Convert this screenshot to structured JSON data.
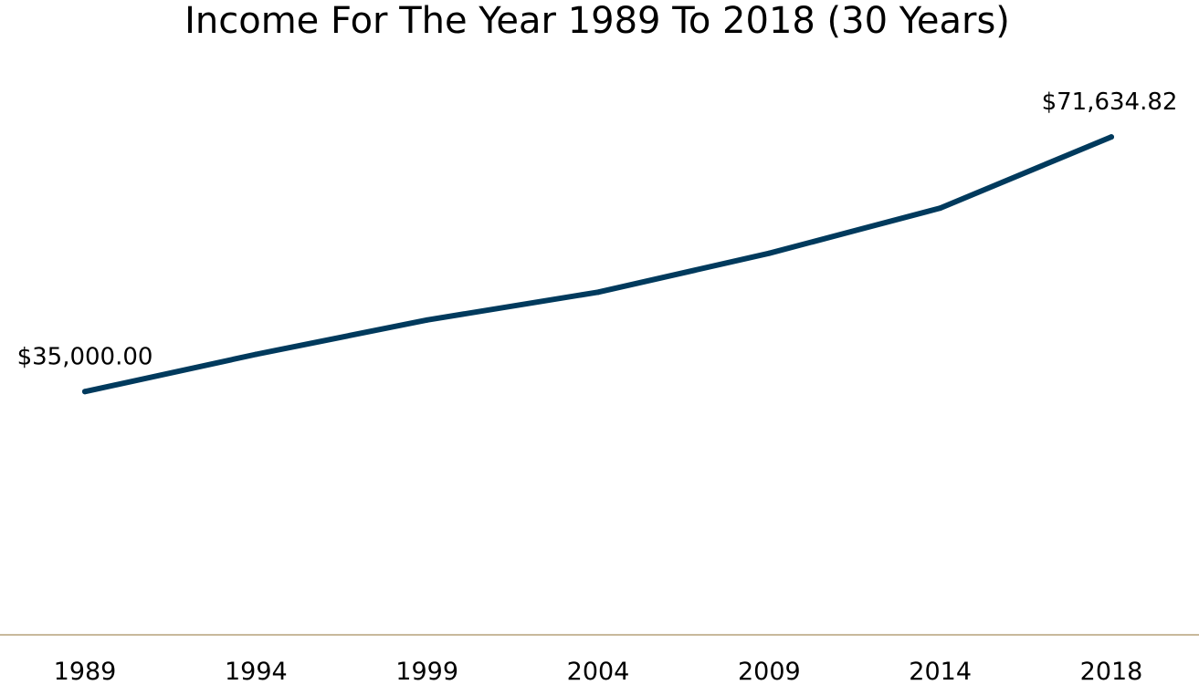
{
  "chart_data": {
    "type": "line",
    "title": "Income For The Year 1989 To 2018 (30 Years)",
    "xlabel": "",
    "ylabel": "",
    "categories": [
      "1989",
      "1994",
      "1999",
      "2004",
      "2009",
      "2014",
      "2018"
    ],
    "series": [
      {
        "values": [
          35000.0,
          40360,
          45300,
          49300,
          54900,
          61400,
          71634.82
        ]
      }
    ],
    "data_labels": [
      {
        "category": "1989",
        "text": "$35,000.00"
      },
      {
        "category": "2018",
        "text": "$71,634.82"
      }
    ],
    "ylim": [
      0,
      75000
    ],
    "grid": false,
    "legend": "none",
    "colors": {
      "line": "#003a5d",
      "axis": "#b6a27a"
    }
  }
}
